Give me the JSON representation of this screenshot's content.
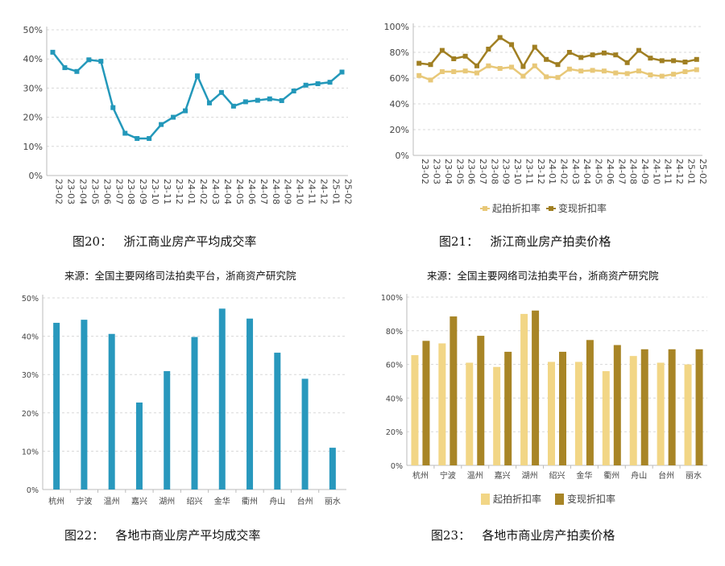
{
  "captions": {
    "fig20": "图20：   浙江商业房产平均成交率",
    "fig21": "图21：   浙江商业房产拍卖价格",
    "fig22": "图22：   各地市商业房产平均成交率",
    "fig23": "图23：   各地市商业房产拍卖价格",
    "source_left": "来源：全国主要网络司法拍卖平台，浙商资产研究院",
    "source_right": "来源：全国主要网络司法拍卖平台，浙商资产研究院"
  },
  "chart_data": [
    {
      "type": "line",
      "x": [
        "23-02",
        "23-03",
        "23-04",
        "23-05",
        "23-06",
        "23-07",
        "23-08",
        "23-09",
        "23-10",
        "23-11",
        "23-12",
        "24-01",
        "24-02",
        "24-03",
        "24-04",
        "24-05",
        "24-06",
        "24-07",
        "24-08",
        "24-09",
        "24-10",
        "24-11",
        "24-12",
        "25-01",
        "25-02"
      ],
      "series": [
        {
          "values": [
            42.3,
            37,
            35.7,
            39.7,
            39.2,
            23.3,
            14.5,
            12.7,
            12.7,
            17.5,
            20,
            22.2,
            34.2,
            24.9,
            28.5,
            23.8,
            25.3,
            25.8,
            26.3,
            25.7,
            29,
            31,
            31.5,
            32,
            35.5
          ],
          "color": "#2398ba"
        }
      ],
      "yticks": [
        "0%",
        "10%",
        "20%",
        "30%",
        "40%",
        "50%"
      ],
      "ylim": [
        0,
        50
      ],
      "grid": true
    },
    {
      "type": "line",
      "x": [
        "23-02",
        "23-03",
        "23-04",
        "23-05",
        "23-06",
        "23-07",
        "23-08",
        "23-09",
        "23-10",
        "23-11",
        "23-12",
        "24-01",
        "24-02",
        "24-03",
        "24-04",
        "24-05",
        "24-06",
        "24-07",
        "24-08",
        "24-09",
        "24-10",
        "24-11",
        "24-12",
        "25-01",
        "25-02"
      ],
      "series": [
        {
          "name": "起拍折扣率",
          "values": [
            62,
            58.5,
            65,
            65,
            65.5,
            64,
            69.5,
            67.5,
            68.5,
            61.5,
            69.5,
            61,
            60.5,
            67,
            65.5,
            66,
            65.5,
            64,
            63.5,
            65.5,
            62.5,
            61.5,
            63,
            65,
            66.5
          ],
          "color": "#e8c878"
        },
        {
          "name": "变现折扣率",
          "values": [
            71.5,
            70.5,
            81.5,
            75,
            77,
            69.5,
            82.5,
            91.5,
            86,
            69,
            84,
            74.5,
            70.5,
            80,
            76,
            78,
            79.5,
            78,
            72,
            81.5,
            75.5,
            73.5,
            73.5,
            72.5,
            74.5
          ],
          "color": "#a07f22"
        }
      ],
      "yticks": [
        "0%",
        "20%",
        "40%",
        "60%",
        "80%",
        "100%"
      ],
      "ylim": [
        0,
        100
      ],
      "grid": true,
      "legend": "bottom"
    },
    {
      "type": "bar",
      "categories": [
        "杭州",
        "宁波",
        "温州",
        "嘉兴",
        "湖州",
        "绍兴",
        "金华",
        "衢州",
        "舟山",
        "台州",
        "丽水"
      ],
      "series": [
        {
          "values": [
            43.5,
            44.3,
            40.6,
            22.7,
            30.9,
            39.8,
            47.2,
            44.6,
            35.7,
            28.9,
            10.9
          ],
          "color": "#2898bd"
        }
      ],
      "yticks": [
        "0%",
        "10%",
        "20%",
        "30%",
        "40%",
        "50%"
      ],
      "ylim": [
        0,
        50
      ],
      "grid": true
    },
    {
      "type": "bar",
      "categories": [
        "杭州",
        "宁波",
        "温州",
        "嘉兴",
        "湖州",
        "绍兴",
        "金华",
        "衢州",
        "舟山",
        "台州",
        "丽水"
      ],
      "series": [
        {
          "name": "起拍折扣率",
          "values": [
            65.5,
            72.5,
            61,
            58.5,
            90,
            61.5,
            61.5,
            56,
            65,
            61,
            60
          ],
          "color": "#f2d686"
        },
        {
          "name": "变现折扣率",
          "values": [
            74,
            88.5,
            77,
            67.5,
            92,
            67.5,
            74.5,
            71.5,
            69,
            69,
            69
          ],
          "color": "#a88526"
        }
      ],
      "yticks": [
        "0%",
        "20%",
        "40%",
        "60%",
        "80%",
        "100%"
      ],
      "ylim": [
        0,
        100
      ],
      "grid": true,
      "legend": "bottom"
    }
  ]
}
